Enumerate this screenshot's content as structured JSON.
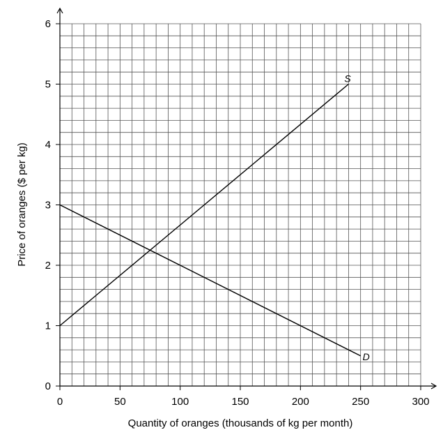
{
  "chart_data": {
    "type": "line",
    "xlabel": "Quantity of oranges (thousands of kg per month)",
    "ylabel": "Price of oranges ($ per kg)",
    "xlim": [
      0,
      300
    ],
    "ylim": [
      0,
      6
    ],
    "x_ticks": [
      0,
      50,
      100,
      150,
      200,
      250,
      300
    ],
    "x_tick_labels": [
      "0",
      "50",
      "100",
      "150",
      "200",
      "250",
      "300"
    ],
    "y_ticks": [
      0,
      1,
      2,
      3,
      4,
      5,
      6
    ],
    "y_tick_labels": [
      "0",
      "1",
      "2",
      "3",
      "4",
      "5",
      "6"
    ],
    "grid": true,
    "minor_grid_x_step": 10,
    "minor_grid_y_step": 0.2,
    "series": [
      {
        "name": "S",
        "points": [
          [
            0,
            1
          ],
          [
            240,
            5
          ]
        ]
      },
      {
        "name": "D",
        "points": [
          [
            0,
            3
          ],
          [
            250,
            0.5
          ]
        ]
      }
    ]
  }
}
